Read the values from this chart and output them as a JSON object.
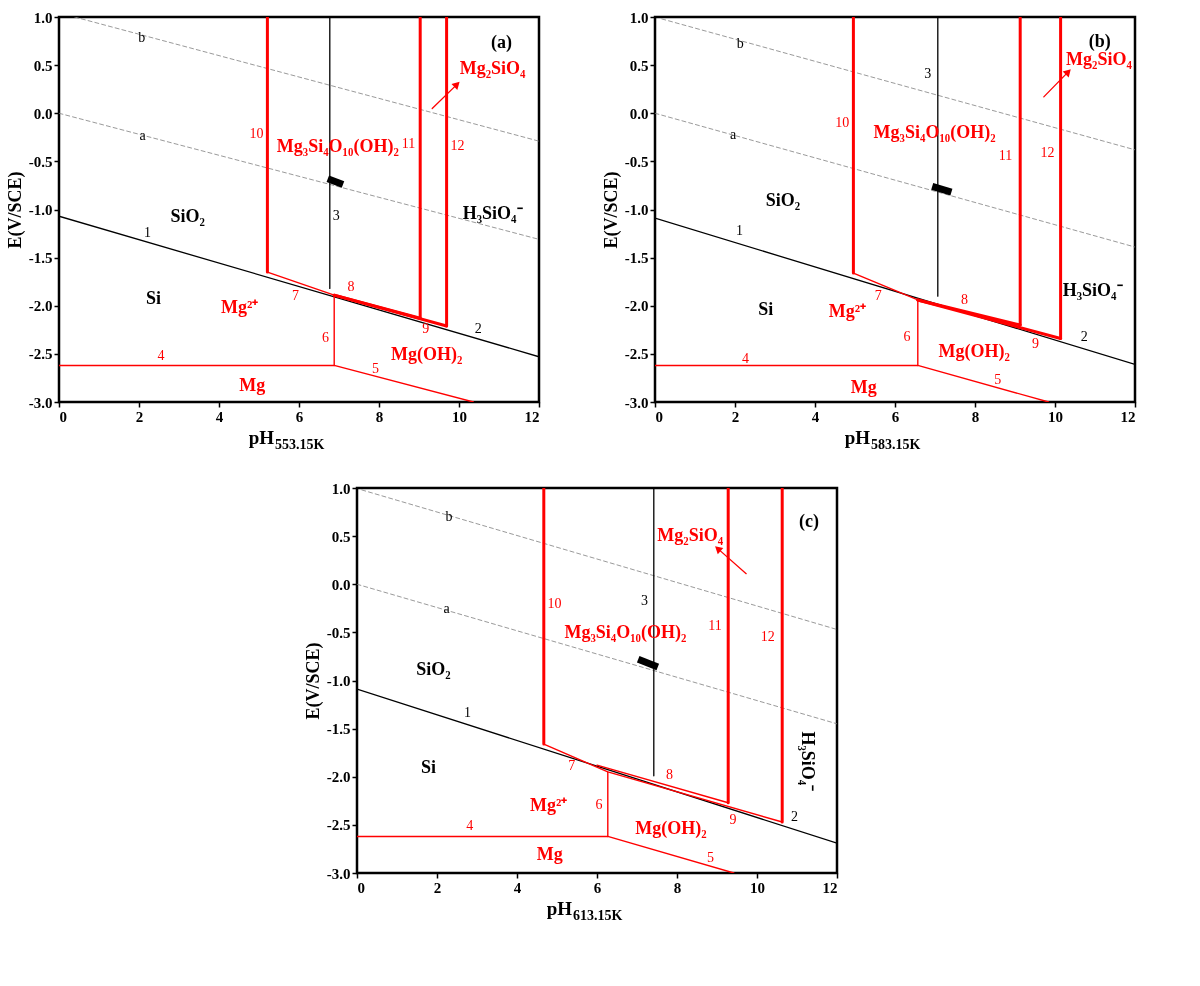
{
  "chart_data": [
    {
      "type": "line",
      "xlabel": "pH$_{553.15K}$",
      "ylabel": "E(V/SCE)",
      "xlim": [
        0,
        12
      ],
      "ylim": [
        -3,
        1
      ],
      "xticks": [
        0,
        2,
        4,
        6,
        8,
        10,
        12
      ],
      "yticks": [
        {
          "value": -3,
          "label": "-3.0"
        },
        {
          "value": -2.5,
          "label": "-2.5"
        },
        {
          "value": -2,
          "label": "-2.0"
        },
        {
          "value": -1.5,
          "label": "-1.5"
        },
        {
          "value": -1,
          "label": "-1.0"
        },
        {
          "value": -0.5,
          "label": "-0.5"
        },
        {
          "value": 0,
          "label": "0.0"
        },
        {
          "value": 0.5,
          "label": "0.5"
        },
        {
          "value": 1,
          "label": "1.0"
        }
      ],
      "grid": false,
      "series": [
        {
          "color": "#000000",
          "line_style": "solid",
          "x": [
            0,
            12
          ],
          "values": [
            -1.07,
            -2.53
          ]
        },
        {
          "color": "#808080",
          "line_style": "dashed",
          "x": [
            0.39,
            12
          ],
          "values": [
            1.0,
            -0.29
          ]
        },
        {
          "color": "#808080",
          "line_style": "dashed",
          "x": [
            0,
            12
          ],
          "values": [
            0.0,
            -1.31
          ]
        },
        {
          "color": "#000000",
          "line_style": "solid",
          "x": [
            6.77,
            6.77
          ],
          "values": [
            1.0,
            -1.82
          ]
        },
        {
          "color": "#ff0000",
          "line_style": "solid",
          "x": [
            5.21,
            5.21
          ],
          "values": [
            1.0,
            -1.65
          ]
        },
        {
          "color": "#ff0000",
          "line_style": "solid",
          "x": [
            5.21,
            6.88
          ],
          "values": [
            -1.65,
            -1.89
          ]
        },
        {
          "color": "#ff0000",
          "line_style": "solid",
          "x": [
            6.88,
            9.03
          ],
          "values": [
            -1.89,
            -2.13
          ]
        },
        {
          "color": "#ff0000",
          "line_style": "solid",
          "x": [
            6.88,
            9.69
          ],
          "values": [
            -1.89,
            -2.21
          ]
        },
        {
          "color": "#ff0000",
          "line_style": "solid",
          "x": [
            9.03,
            9.03
          ],
          "values": [
            1.0,
            -2.13
          ]
        },
        {
          "color": "#ff0000",
          "line_style": "solid",
          "x": [
            9.69,
            9.69
          ],
          "values": [
            1.0,
            -2.21
          ]
        },
        {
          "color": "#ff0000",
          "line_style": "solid",
          "x": [
            6.88,
            6.88
          ],
          "values": [
            -1.89,
            -2.62
          ]
        },
        {
          "color": "#ff0000",
          "line_style": "solid",
          "x": [
            0,
            6.88,
            10.36
          ],
          "values": [
            -2.62,
            -2.62,
            -3.0
          ]
        },
        {
          "color": "#000000",
          "line_style": "solid",
          "x": [
            6.72,
            7.1
          ],
          "values": [
            -0.68,
            -0.74
          ]
        },
        {
          "color": "#ff0000",
          "line_style": "solid",
          "x": [
            9.33,
            9.95
          ],
          "values": [
            0.05,
            0.3
          ]
        }
      ],
      "annotations": [
        "(a)",
        "b",
        "a",
        "10",
        "Mg₃Si₄O₁₀(OH)₂",
        "11",
        "12",
        "Mg₂SiO₄",
        "3",
        "SiO₂",
        "H₃SiO₄⁻",
        "1",
        "Si",
        "Mg²⁺",
        "7",
        "8",
        "9",
        "2",
        "6",
        "4",
        "Mg(OH)₂",
        "5",
        "Mg"
      ]
    },
    {
      "type": "line",
      "xlabel": "pH$_{583.15K}$",
      "ylabel": "E(V/SCE)",
      "xlim": [
        0,
        12
      ],
      "ylim": [
        -3,
        1
      ],
      "xticks": [
        0,
        2,
        4,
        6,
        8,
        10,
        12
      ],
      "yticks": [
        {
          "value": -3,
          "label": "-3.0"
        },
        {
          "value": -2.5,
          "label": "-2.5"
        },
        {
          "value": -2,
          "label": "-2.0"
        },
        {
          "value": -1.5,
          "label": "-1.5"
        },
        {
          "value": -1,
          "label": "-1.0"
        },
        {
          "value": -0.5,
          "label": "-0.5"
        },
        {
          "value": 0,
          "label": "0.0"
        },
        {
          "value": 0.5,
          "label": "0.5"
        },
        {
          "value": 1,
          "label": "1.0"
        }
      ],
      "grid": false,
      "series": [
        {
          "color": "#000000",
          "line_style": "solid",
          "x": [
            0,
            12
          ],
          "values": [
            -1.09,
            -2.61
          ]
        },
        {
          "color": "#808080",
          "line_style": "dashed",
          "x": [
            0.17,
            12
          ],
          "values": [
            0.98,
            -0.38
          ]
        },
        {
          "color": "#808080",
          "line_style": "dashed",
          "x": [
            0,
            12
          ],
          "values": [
            0.0,
            -1.39
          ]
        },
        {
          "color": "#000000",
          "line_style": "solid",
          "x": [
            7.07,
            7.07
          ],
          "values": [
            1.0,
            -1.9
          ]
        },
        {
          "color": "#ff0000",
          "line_style": "solid",
          "x": [
            4.96,
            4.96
          ],
          "values": [
            1.0,
            -1.66
          ]
        },
        {
          "color": "#ff0000",
          "line_style": "solid",
          "x": [
            4.96,
            6.57
          ],
          "values": [
            -1.66,
            -1.94
          ]
        },
        {
          "color": "#ff0000",
          "line_style": "solid",
          "x": [
            6.57,
            9.13
          ],
          "values": [
            -1.94,
            -2.2
          ]
        },
        {
          "color": "#ff0000",
          "line_style": "solid",
          "x": [
            6.57,
            10.14
          ],
          "values": [
            -1.94,
            -2.34
          ]
        },
        {
          "color": "#ff0000",
          "line_style": "solid",
          "x": [
            9.13,
            9.13
          ],
          "values": [
            1.0,
            -2.2
          ]
        },
        {
          "color": "#ff0000",
          "line_style": "solid",
          "x": [
            10.14,
            10.14
          ],
          "values": [
            1.0,
            -2.34
          ]
        },
        {
          "color": "#ff0000",
          "line_style": "solid",
          "x": [
            6.57,
            6.57
          ],
          "values": [
            -1.94,
            -2.62
          ]
        },
        {
          "color": "#ff0000",
          "line_style": "solid",
          "x": [
            0,
            6.57,
            9.84
          ],
          "values": [
            -2.62,
            -2.62,
            -3.0
          ]
        },
        {
          "color": "#000000",
          "line_style": "solid",
          "x": [
            6.93,
            7.41
          ],
          "values": [
            -0.76,
            -0.82
          ]
        },
        {
          "color": "#ff0000",
          "line_style": "solid",
          "x": [
            9.72,
            10.33
          ],
          "values": [
            0.17,
            0.43
          ]
        }
      ],
      "annotations": [
        "(b)",
        "b",
        "a",
        "3",
        "10",
        "Mg₃Si₄O₁₀(OH)₂",
        "11",
        "12",
        "Mg₂SiO₄",
        "SiO₂",
        "1",
        "H₃SiO₄⁻",
        "Si",
        "Mg²⁺",
        "7",
        "8",
        "9",
        "2",
        "6",
        "4",
        "Mg(OH)₂",
        "5",
        "Mg"
      ]
    },
    {
      "type": "line",
      "xlabel": "pH$_{613.15K}$",
      "ylabel": "E(V/SCE)",
      "xlim": [
        0,
        12
      ],
      "ylim": [
        -3,
        1
      ],
      "xticks": [
        0,
        2,
        4,
        6,
        8,
        10,
        12
      ],
      "yticks": [
        {
          "value": -3,
          "label": "-3.0"
        },
        {
          "value": -2.5,
          "label": "-2.5"
        },
        {
          "value": -2,
          "label": "-2.0"
        },
        {
          "value": -1.5,
          "label": "-1.5"
        },
        {
          "value": -1,
          "label": "-1.0"
        },
        {
          "value": -0.5,
          "label": "-0.5"
        },
        {
          "value": 0,
          "label": "0.0"
        },
        {
          "value": 0.5,
          "label": "0.5"
        },
        {
          "value": 1,
          "label": "1.0"
        }
      ],
      "grid": false,
      "series": [
        {
          "color": "#000000",
          "line_style": "solid",
          "x": [
            0,
            12
          ],
          "values": [
            -1.09,
            -2.69
          ]
        },
        {
          "color": "#808080",
          "line_style": "dashed",
          "x": [
            0.12,
            12
          ],
          "values": [
            0.98,
            -0.47
          ]
        },
        {
          "color": "#808080",
          "line_style": "dashed",
          "x": [
            0,
            12
          ],
          "values": [
            0.0,
            -1.45
          ]
        },
        {
          "color": "#000000",
          "line_style": "solid",
          "x": [
            7.42,
            7.42
          ],
          "values": [
            1.0,
            -1.99
          ]
        },
        {
          "color": "#ff0000",
          "line_style": "solid",
          "x": [
            4.67,
            4.67
          ],
          "values": [
            1.0,
            -1.66
          ]
        },
        {
          "color": "#ff0000",
          "line_style": "solid",
          "x": [
            4.67,
            6.27,
            10.63
          ],
          "values": [
            -1.66,
            -1.95,
            -2.47
          ]
        },
        {
          "color": "#ff0000",
          "line_style": "solid",
          "x": [
            6.0,
            9.28
          ],
          "values": [
            -1.88,
            -2.27
          ]
        },
        {
          "color": "#ff0000",
          "line_style": "solid",
          "x": [
            9.28,
            9.28
          ],
          "values": [
            1.0,
            -2.27
          ]
        },
        {
          "color": "#ff0000",
          "line_style": "solid",
          "x": [
            10.63,
            10.63
          ],
          "values": [
            1.0,
            -2.47
          ]
        },
        {
          "color": "#ff0000",
          "line_style": "solid",
          "x": [
            6.27,
            6.27
          ],
          "values": [
            -1.95,
            -2.62
          ]
        },
        {
          "color": "#ff0000",
          "line_style": "solid",
          "x": [
            0,
            6.27,
            9.42
          ],
          "values": [
            -2.62,
            -2.62,
            -3.0
          ]
        },
        {
          "color": "#000000",
          "line_style": "solid",
          "x": [
            7.03,
            7.52
          ],
          "values": [
            -0.78,
            -0.86
          ]
        },
        {
          "color": "#ff0000",
          "line_style": "solid",
          "x": [
            9.73,
            9.02
          ],
          "values": [
            0.11,
            0.37
          ]
        }
      ],
      "annotations": [
        "(c)",
        "b",
        "a",
        "10",
        "3",
        "Mg₃Si₄O₁₀(OH)₂",
        "11",
        "12",
        "Mg₂SiO₄",
        "SiO₂",
        "1",
        "H₃SiO₄⁻",
        "Si",
        "7",
        "8",
        "Mg²⁺",
        "6",
        "9",
        "2",
        "4",
        "Mg(OH)₂",
        "5",
        "Mg"
      ]
    }
  ]
}
